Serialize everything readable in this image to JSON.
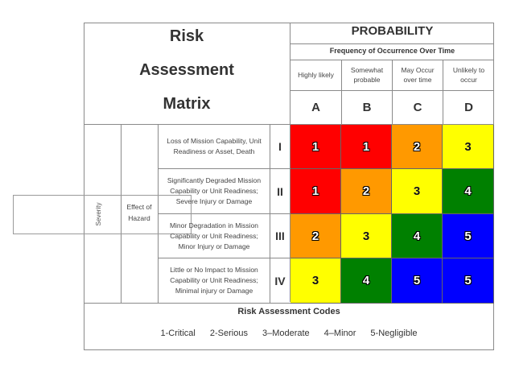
{
  "matrix": {
    "title_line1": "Risk",
    "title_line2": "Assessment",
    "title_line3": "Matrix"
  },
  "probability": {
    "title": "PROBABILITY",
    "subtitle": "Frequency of Occurrence Over Time",
    "columns": [
      {
        "label": "Highly likely",
        "letter": "A"
      },
      {
        "label": "Somewhat probable",
        "letter": "B"
      },
      {
        "label": "May Occur over time",
        "letter": "C"
      },
      {
        "label": "Unlikely to occur",
        "letter": "D"
      }
    ]
  },
  "severity": {
    "label": "Severity",
    "effect_label": "Effect of Hazard",
    "rows": [
      {
        "hazard": "Loss of Mission Capability, Unit Readiness or Asset, Death",
        "category": "I",
        "codes": [
          "1",
          "1",
          "2",
          "3"
        ]
      },
      {
        "hazard": "Significantly Degraded Mission Capability or Unit Readiness; Severe Injury or Damage",
        "category": "II",
        "codes": [
          "1",
          "2",
          "3",
          "4"
        ]
      },
      {
        "hazard": "Minor Degradation in Mission Capability or Unit Readiness; Minor Injury or Damage",
        "category": "III",
        "codes": [
          "2",
          "3",
          "4",
          "5"
        ]
      },
      {
        "hazard": "Little or No Impact to Mission Capability or Unit Readiness; Minimal injury or Damage",
        "category": "IV",
        "codes": [
          "3",
          "4",
          "5",
          "5"
        ]
      }
    ]
  },
  "colors": {
    "1": "#ff0000",
    "2": "#ff9900",
    "3": "#ffff00",
    "4": "#008000",
    "5": "#0000ff"
  },
  "codes": {
    "title": "Risk Assessment Codes",
    "items": [
      "1-Critical",
      "2-Serious",
      "3–Moderate",
      "4–Minor",
      "5-Negligible"
    ]
  }
}
